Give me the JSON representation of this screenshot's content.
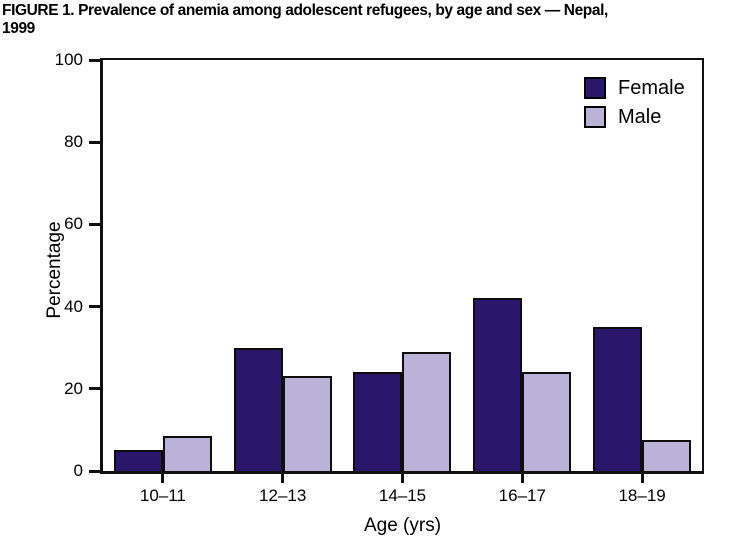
{
  "title": {
    "line1": "FIGURE 1. Prevalence of anemia among adolescent refugees, by age and sex — Nepal,",
    "line2": "1999"
  },
  "chart_data": {
    "type": "bar",
    "title": "FIGURE 1. Prevalence of anemia among adolescent refugees, by age and sex — Nepal, 1999",
    "categories": [
      "10–11",
      "12–13",
      "14–15",
      "16–17",
      "18–19"
    ],
    "series": [
      {
        "name": "Female",
        "color": "#2a176b",
        "values": [
          5,
          30,
          24,
          42,
          35
        ]
      },
      {
        "name": "Male",
        "color": "#bab2d8",
        "values": [
          8.5,
          23,
          29,
          24,
          7.5
        ]
      }
    ],
    "xlabel": "Age (yrs)",
    "ylabel": "Percentage",
    "ylim": [
      0,
      100
    ],
    "yticks": [
      0,
      20,
      40,
      60,
      80,
      100
    ],
    "grid": false,
    "legend_position": "top-right-inside",
    "bar_border_color": "#0d0d0d",
    "axis_color": "#101010"
  }
}
